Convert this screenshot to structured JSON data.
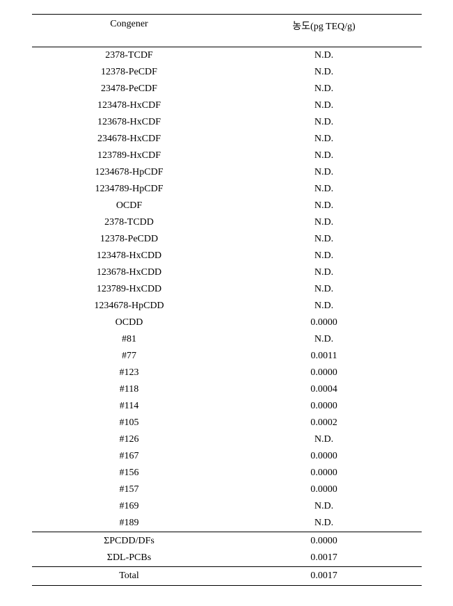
{
  "table": {
    "headers": {
      "congener": "Congener",
      "concentration": "농도(pg TEQ/g)"
    },
    "rows": [
      {
        "congener": "2378-TCDF",
        "value": "N.D."
      },
      {
        "congener": "12378-PeCDF",
        "value": "N.D."
      },
      {
        "congener": "23478-PeCDF",
        "value": "N.D."
      },
      {
        "congener": "123478-HxCDF",
        "value": "N.D."
      },
      {
        "congener": "123678-HxCDF",
        "value": "N.D."
      },
      {
        "congener": "234678-HxCDF",
        "value": "N.D."
      },
      {
        "congener": "123789-HxCDF",
        "value": "N.D."
      },
      {
        "congener": "1234678-HpCDF",
        "value": "N.D."
      },
      {
        "congener": "1234789-HpCDF",
        "value": "N.D."
      },
      {
        "congener": "OCDF",
        "value": "N.D."
      },
      {
        "congener": "2378-TCDD",
        "value": "N.D."
      },
      {
        "congener": "12378-PeCDD",
        "value": "N.D."
      },
      {
        "congener": "123478-HxCDD",
        "value": "N.D."
      },
      {
        "congener": "123678-HxCDD",
        "value": "N.D."
      },
      {
        "congener": "123789-HxCDD",
        "value": "N.D."
      },
      {
        "congener": "1234678-HpCDD",
        "value": "N.D."
      },
      {
        "congener": "OCDD",
        "value": "0.0000"
      },
      {
        "congener": "#81",
        "value": "N.D."
      },
      {
        "congener": "#77",
        "value": "0.0011"
      },
      {
        "congener": "#123",
        "value": "0.0000"
      },
      {
        "congener": "#118",
        "value": "0.0004"
      },
      {
        "congener": "#114",
        "value": "0.0000"
      },
      {
        "congener": "#105",
        "value": "0.0002"
      },
      {
        "congener": "#126",
        "value": "N.D."
      },
      {
        "congener": "#167",
        "value": "0.0000"
      },
      {
        "congener": "#156",
        "value": "0.0000"
      },
      {
        "congener": "#157",
        "value": "0.0000"
      },
      {
        "congener": "#169",
        "value": "N.D."
      },
      {
        "congener": "#189",
        "value": "N.D."
      }
    ],
    "sum_rows": [
      {
        "congener": "ΣPCDD/DFs",
        "value": "0.0000"
      },
      {
        "congener": "ΣDL-PCBs",
        "value": "0.0017"
      }
    ],
    "total_row": {
      "congener": "Total",
      "value": "0.0017"
    },
    "styles": {
      "font_family": "Times New Roman",
      "font_size": 14,
      "border_color": "#000000",
      "background_color": "#ffffff",
      "text_color": "#000000"
    }
  }
}
